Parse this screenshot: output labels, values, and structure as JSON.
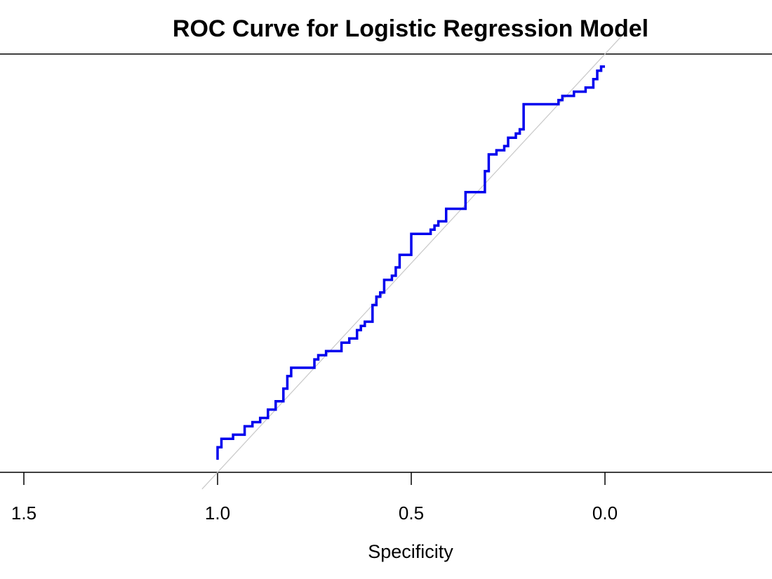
{
  "chart_data": {
    "type": "line",
    "title": "ROC Curve for Logistic Regression Model",
    "xlabel": "Specificity",
    "ylabel": "",
    "x_reversed": true,
    "xlim": [
      1.5,
      0.0
    ],
    "ylim": [
      0.0,
      1.0
    ],
    "x_ticks": [
      1.5,
      1.0,
      0.5,
      0.0
    ],
    "x_tick_labels": [
      "1.5",
      "1.0",
      "0.5",
      "0.0"
    ],
    "grid": false,
    "reference_line": {
      "from": [
        1.0,
        0.0
      ],
      "to": [
        0.0,
        1.0
      ],
      "color": "#c8c8c8"
    },
    "series": [
      {
        "color": "#0000ee",
        "specificity": [
          1.0,
          1.0,
          0.99,
          0.99,
          0.96,
          0.96,
          0.93,
          0.93,
          0.91,
          0.91,
          0.89,
          0.89,
          0.87,
          0.87,
          0.85,
          0.85,
          0.83,
          0.83,
          0.82,
          0.82,
          0.81,
          0.81,
          0.75,
          0.75,
          0.74,
          0.74,
          0.72,
          0.72,
          0.68,
          0.68,
          0.66,
          0.66,
          0.64,
          0.64,
          0.63,
          0.63,
          0.62,
          0.62,
          0.6,
          0.6,
          0.59,
          0.59,
          0.58,
          0.58,
          0.57,
          0.57,
          0.55,
          0.55,
          0.54,
          0.54,
          0.53,
          0.53,
          0.5,
          0.5,
          0.45,
          0.45,
          0.44,
          0.44,
          0.43,
          0.43,
          0.41,
          0.41,
          0.36,
          0.36,
          0.31,
          0.31,
          0.3,
          0.3,
          0.28,
          0.28,
          0.26,
          0.26,
          0.25,
          0.25,
          0.23,
          0.23,
          0.22,
          0.22,
          0.21,
          0.21,
          0.12,
          0.12,
          0.11,
          0.11,
          0.08,
          0.08,
          0.05,
          0.05,
          0.03,
          0.03,
          0.02,
          0.02,
          0.01,
          0.01,
          0.0
        ],
        "sensitivity": [
          0.03,
          0.06,
          0.06,
          0.08,
          0.08,
          0.09,
          0.09,
          0.11,
          0.11,
          0.12,
          0.12,
          0.13,
          0.13,
          0.15,
          0.15,
          0.17,
          0.17,
          0.2,
          0.2,
          0.23,
          0.23,
          0.25,
          0.25,
          0.27,
          0.27,
          0.28,
          0.28,
          0.29,
          0.29,
          0.31,
          0.31,
          0.32,
          0.32,
          0.34,
          0.34,
          0.35,
          0.35,
          0.36,
          0.36,
          0.4,
          0.4,
          0.42,
          0.42,
          0.43,
          0.43,
          0.46,
          0.46,
          0.47,
          0.47,
          0.49,
          0.49,
          0.52,
          0.52,
          0.57,
          0.57,
          0.58,
          0.58,
          0.59,
          0.59,
          0.6,
          0.6,
          0.63,
          0.63,
          0.67,
          0.67,
          0.72,
          0.72,
          0.76,
          0.76,
          0.77,
          0.77,
          0.78,
          0.78,
          0.8,
          0.8,
          0.81,
          0.81,
          0.82,
          0.82,
          0.88,
          0.88,
          0.89,
          0.89,
          0.9,
          0.9,
          0.91,
          0.91,
          0.92,
          0.92,
          0.94,
          0.94,
          0.96,
          0.96,
          0.97,
          0.97
        ]
      }
    ]
  }
}
